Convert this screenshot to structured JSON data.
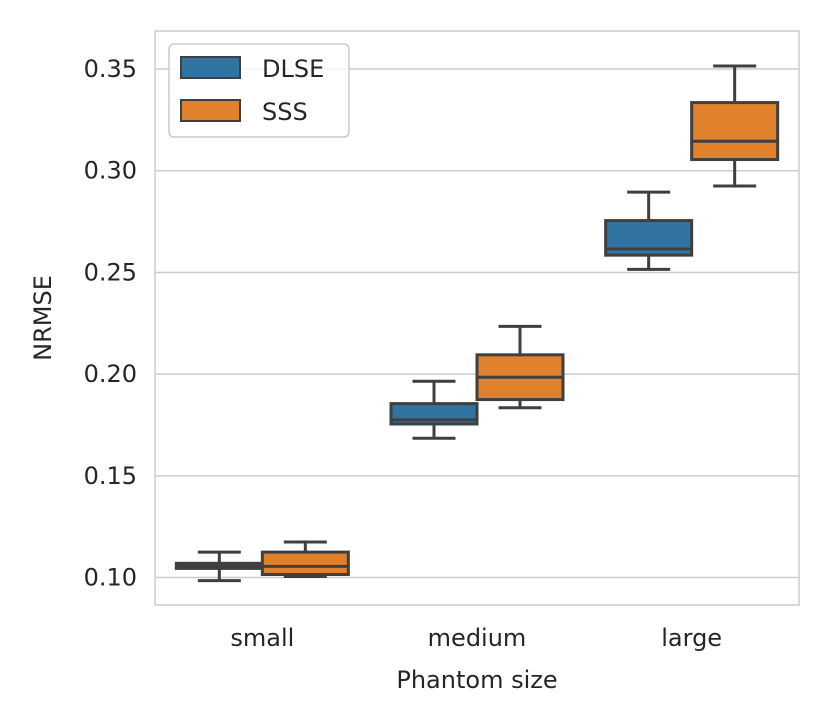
{
  "chart_data": {
    "type": "boxplot",
    "title": "",
    "xlabel": "Phantom size",
    "ylabel": "NRMSE",
    "categories": [
      "small",
      "medium",
      "large"
    ],
    "ylim": [
      0.0865,
      0.3687
    ],
    "yticks": [
      0.1,
      0.15,
      0.2,
      0.25,
      0.3,
      0.35
    ],
    "ytick_labels": [
      "0.10",
      "0.15",
      "0.20",
      "0.25",
      "0.30",
      "0.35"
    ],
    "grid": "horizontal",
    "legend_position": "upper-left",
    "series": [
      {
        "name": "DLSE",
        "color": "#3274a1",
        "boxes": [
          {
            "whislo": 0.0985,
            "q1": 0.1045,
            "med": 0.1055,
            "q3": 0.107,
            "whishi": 0.1125
          },
          {
            "whislo": 0.1685,
            "q1": 0.1755,
            "med": 0.1775,
            "q3": 0.1855,
            "whishi": 0.1965
          },
          {
            "whislo": 0.2515,
            "q1": 0.2585,
            "med": 0.2615,
            "q3": 0.2755,
            "whishi": 0.2895
          }
        ]
      },
      {
        "name": "SSS",
        "color": "#e1812c",
        "boxes": [
          {
            "whislo": 0.1005,
            "q1": 0.1015,
            "med": 0.1055,
            "q3": 0.1125,
            "whishi": 0.1175
          },
          {
            "whislo": 0.1835,
            "q1": 0.1875,
            "med": 0.1985,
            "q3": 0.2095,
            "whishi": 0.2235
          },
          {
            "whislo": 0.2925,
            "q1": 0.3055,
            "med": 0.3145,
            "q3": 0.3335,
            "whishi": 0.3515
          }
        ]
      }
    ]
  }
}
